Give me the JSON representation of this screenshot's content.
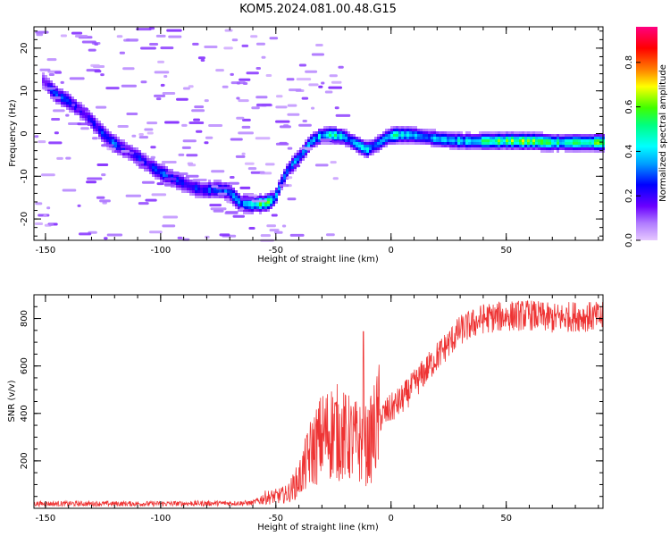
{
  "title": "KOM5.2024.081.00.48.G15",
  "chart_data": [
    {
      "type": "heatmap",
      "xlabel": "Height of straight line (km)",
      "ylabel": "Frequency (Hz)",
      "xlim": [
        -155,
        92
      ],
      "ylim": [
        -25,
        25
      ],
      "xticks": [
        -150,
        -100,
        -50,
        0,
        50
      ],
      "yticks": [
        -20,
        -10,
        0,
        10,
        20
      ],
      "colorbar": {
        "label": "Normalized spectral amplitude",
        "range": [
          0,
          0.96
        ],
        "ticks": [
          "0.0",
          "0.2",
          "0.4",
          "0.6",
          "0.8"
        ],
        "tick_values": [
          0,
          0.2,
          0.4,
          0.6,
          0.8
        ]
      },
      "ridge": [
        {
          "x": -152,
          "f": 13.0,
          "a": 0.12
        },
        {
          "x": -146,
          "f": 9.5,
          "a": 0.3
        },
        {
          "x": -141,
          "f": 8.0,
          "a": 0.25
        },
        {
          "x": -136,
          "f": 6.0,
          "a": 0.22
        },
        {
          "x": -131,
          "f": 3.5,
          "a": 0.2
        },
        {
          "x": -126,
          "f": 0.5,
          "a": 0.28
        },
        {
          "x": -121,
          "f": -2.0,
          "a": 0.3
        },
        {
          "x": -116,
          "f": -3.5,
          "a": 0.22
        },
        {
          "x": -111,
          "f": -5.0,
          "a": 0.25
        },
        {
          "x": -106,
          "f": -7.0,
          "a": 0.22
        },
        {
          "x": -100,
          "f": -9.0,
          "a": 0.3
        },
        {
          "x": -94,
          "f": -10.5,
          "a": 0.28
        },
        {
          "x": -88,
          "f": -12.0,
          "a": 0.22
        },
        {
          "x": -82,
          "f": -13.0,
          "a": 0.28
        },
        {
          "x": -76,
          "f": -12.8,
          "a": 0.35
        },
        {
          "x": -71,
          "f": -13.2,
          "a": 0.3
        },
        {
          "x": -66,
          "f": -16.0,
          "a": 0.35
        },
        {
          "x": -60,
          "f": -16.2,
          "a": 0.45
        },
        {
          "x": -55,
          "f": -16.0,
          "a": 0.6
        },
        {
          "x": -51,
          "f": -15.0,
          "a": 0.4
        },
        {
          "x": -48,
          "f": -11.0,
          "a": 0.3
        },
        {
          "x": -45,
          "f": -8.0,
          "a": 0.3
        },
        {
          "x": -40,
          "f": -5.0,
          "a": 0.35
        },
        {
          "x": -35,
          "f": -1.5,
          "a": 0.35
        },
        {
          "x": -31,
          "f": -0.2,
          "a": 0.4
        },
        {
          "x": -26,
          "f": 0.0,
          "a": 0.5
        },
        {
          "x": -21,
          "f": -0.5,
          "a": 0.4
        },
        {
          "x": -16,
          "f": -2.0,
          "a": 0.35
        },
        {
          "x": -11,
          "f": -3.5,
          "a": 0.4
        },
        {
          "x": -6,
          "f": -2.0,
          "a": 0.35
        },
        {
          "x": -2,
          "f": -0.5,
          "a": 0.35
        },
        {
          "x": 2,
          "f": 0.0,
          "a": 0.5
        },
        {
          "x": 8,
          "f": 0.0,
          "a": 0.4
        },
        {
          "x": 14,
          "f": -0.5,
          "a": 0.35
        },
        {
          "x": 20,
          "f": -1.0,
          "a": 0.35
        },
        {
          "x": 26,
          "f": -1.3,
          "a": 0.4
        },
        {
          "x": 32,
          "f": -1.5,
          "a": 0.45
        },
        {
          "x": 38,
          "f": -1.5,
          "a": 0.5
        },
        {
          "x": 44,
          "f": -1.5,
          "a": 0.55
        },
        {
          "x": 50,
          "f": -1.4,
          "a": 0.55
        },
        {
          "x": 56,
          "f": -1.5,
          "a": 0.6
        },
        {
          "x": 62,
          "f": -1.5,
          "a": 0.6
        },
        {
          "x": 68,
          "f": -1.8,
          "a": 0.55
        },
        {
          "x": 74,
          "f": -1.8,
          "a": 0.5
        },
        {
          "x": 80,
          "f": -1.8,
          "a": 0.55
        },
        {
          "x": 86,
          "f": -1.8,
          "a": 0.5
        },
        {
          "x": 92,
          "f": -1.8,
          "a": 0.6
        }
      ]
    },
    {
      "type": "line",
      "xlabel": "Height of straight line (km)",
      "ylabel": "SNR (v/v)",
      "xlim": [
        -155,
        92
      ],
      "ylim": [
        0,
        900
      ],
      "xticks": [
        -150,
        -100,
        -50,
        0,
        50
      ],
      "yticks": [
        200,
        400,
        600,
        800
      ],
      "series_color": "#ee3333",
      "envelope": [
        {
          "x": -155,
          "y": 15
        },
        {
          "x": -100,
          "y": 15
        },
        {
          "x": -60,
          "y": 18
        },
        {
          "x": -55,
          "y": 45
        },
        {
          "x": -50,
          "y": 50
        },
        {
          "x": -45,
          "y": 60
        },
        {
          "x": -40,
          "y": 120
        },
        {
          "x": -35,
          "y": 230
        },
        {
          "x": -30,
          "y": 300
        },
        {
          "x": -25,
          "y": 330
        },
        {
          "x": -20,
          "y": 300
        },
        {
          "x": -15,
          "y": 280
        },
        {
          "x": -12,
          "y": 270
        },
        {
          "x": -10,
          "y": 260
        },
        {
          "x": -5,
          "y": 380
        },
        {
          "x": 0,
          "y": 420
        },
        {
          "x": 5,
          "y": 460
        },
        {
          "x": 10,
          "y": 520
        },
        {
          "x": 20,
          "y": 640
        },
        {
          "x": 30,
          "y": 750
        },
        {
          "x": 40,
          "y": 800
        },
        {
          "x": 50,
          "y": 810
        },
        {
          "x": 60,
          "y": 815
        },
        {
          "x": 70,
          "y": 800
        },
        {
          "x": 80,
          "y": 810
        },
        {
          "x": 92,
          "y": 805
        }
      ],
      "peaks": [
        {
          "x": -12,
          "y": 745
        }
      ]
    }
  ]
}
